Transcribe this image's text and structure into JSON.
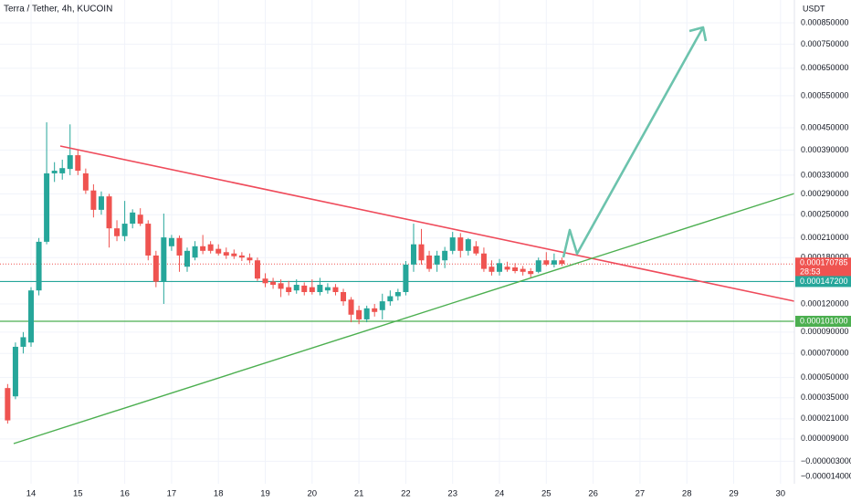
{
  "chart_data": {
    "type": "candlestick",
    "title": "Terra / Tether, 4h, KUCOIN",
    "y_axis_label": "USDT",
    "up_color": "#26a69a",
    "down_color": "#ef5350",
    "grid": true,
    "x": [
      13.5,
      13.667,
      13.833,
      14,
      14.167,
      14.333,
      14.5,
      14.667,
      14.833,
      15,
      15.167,
      15.333,
      15.5,
      15.667,
      15.833,
      16,
      16.167,
      16.333,
      16.5,
      16.667,
      16.833,
      17,
      17.167,
      17.333,
      17.5,
      17.667,
      17.833,
      18,
      18.167,
      18.333,
      18.5,
      18.667,
      18.833,
      19,
      19.167,
      19.333,
      19.5,
      19.667,
      19.833,
      20,
      20.167,
      20.333,
      20.5,
      20.667,
      20.833,
      21,
      21.167,
      21.333,
      21.5,
      21.667,
      21.833,
      22,
      22.167,
      22.333,
      22.5,
      22.667,
      22.833,
      23,
      23.167,
      23.333,
      23.5,
      23.667,
      23.833,
      24,
      24.167,
      24.333,
      24.5,
      24.667,
      24.833,
      25,
      25.167,
      25.333
    ],
    "open": [
      4.2e-05,
      3.6e-05,
      7.6e-05,
      8e-05,
      0.000136,
      0.000204,
      0.000334,
      0.000334,
      0.000344,
      0.000377,
      0.000334,
      0.000297,
      0.000259,
      0.000285,
      0.000226,
      0.000213,
      0.000234,
      0.00025,
      0.000234,
      0.000183,
      0.000147,
      0.000197,
      0.00021,
      0.000167,
      0.00018,
      0.000197,
      0.0002,
      0.000193,
      0.000188,
      0.000186,
      0.000183,
      0.00018,
      0.000176,
      0.000151,
      0.000147,
      0.000145,
      0.00014,
      0.000136,
      0.000142,
      0.00014,
      0.000134,
      0.000136,
      0.00014,
      0.000134,
      0.000125,
      0.000113,
      0.000103,
      0.000115,
      0.000113,
      0.000123,
      0.000129,
      0.000134,
      0.00017,
      0.0002,
      0.000183,
      0.00017,
      0.000176,
      0.00019,
      0.000211,
      0.00019,
      0.000197,
      0.000186,
      0.000167,
      0.00016,
      0.000167,
      0.000166,
      0.000164,
      0.000161,
      0.00016,
      0.000176,
      0.00017,
      0.000176
    ],
    "high": [
      4.5e-05,
      8e-05,
      9e-05,
      0.00014,
      0.00021,
      0.000466,
      0.00036,
      0.000366,
      0.00046,
      0.00039,
      0.000345,
      0.00031,
      0.000295,
      0.00029,
      0.00024,
      0.000276,
      0.00026,
      0.000262,
      0.00024,
      0.00019,
      0.000252,
      0.000215,
      0.000214,
      0.000195,
      0.000205,
      0.000215,
      0.000205,
      0.0002,
      0.000195,
      0.000192,
      0.000188,
      0.000186,
      0.00018,
      0.000158,
      0.000152,
      0.00015,
      0.000148,
      0.00015,
      0.000146,
      0.00015,
      0.000152,
      0.000145,
      0.000144,
      0.000138,
      0.000128,
      0.000118,
      0.000118,
      0.00012,
      0.000132,
      0.000136,
      0.000138,
      0.000175,
      0.000234,
      0.000225,
      0.00019,
      0.00019,
      0.000196,
      0.00022,
      0.000218,
      0.00021,
      0.000205,
      0.000195,
      0.000176,
      0.000178,
      0.000174,
      0.000172,
      0.000168,
      0.000165,
      0.00018,
      0.000188,
      0.000186,
      0.00018
    ],
    "low": [
      1.8e-05,
      3.4e-05,
      7e-05,
      7.6e-05,
      0.00013,
      0.0002,
      0.000315,
      0.00032,
      0.00033,
      0.00033,
      0.00029,
      0.000245,
      0.00025,
      0.000195,
      0.000205,
      0.000205,
      0.000226,
      0.00023,
      0.000176,
      0.00014,
      0.00012,
      0.00019,
      0.00016,
      0.00016,
      0.000176,
      0.000185,
      0.000186,
      0.000183,
      0.000178,
      0.000178,
      0.000175,
      0.000172,
      0.000148,
      0.00014,
      0.000138,
      0.000128,
      0.00013,
      0.000132,
      0.00013,
      0.000131,
      0.00013,
      0.000132,
      0.00013,
      0.000118,
      0.0001,
      9.8e-05,
      0.0001,
      0.000106,
      0.000103,
      0.000118,
      0.000124,
      0.00013,
      0.00016,
      0.00017,
      0.00016,
      0.00016,
      0.000165,
      0.000185,
      0.00018,
      0.000183,
      0.000183,
      0.00016,
      0.000155,
      0.000155,
      0.00016,
      0.000158,
      0.000155,
      0.000152,
      0.000158,
      0.000168,
      0.000166,
      0.000168
    ],
    "close": [
      2e-05,
      7.6e-05,
      8.5e-05,
      0.000136,
      0.000204,
      0.000334,
      0.00034,
      0.000346,
      0.000377,
      0.00034,
      0.000297,
      0.000259,
      0.000285,
      0.000226,
      0.000213,
      0.000234,
      0.000254,
      0.000234,
      0.000183,
      0.000147,
      0.000211,
      0.00021,
      0.000183,
      0.00019,
      0.000197,
      0.00019,
      0.00019,
      0.000186,
      0.000183,
      0.000182,
      0.00018,
      0.000176,
      0.000151,
      0.000145,
      0.000143,
      0.000138,
      0.000134,
      0.000143,
      0.000134,
      0.000134,
      0.000143,
      0.00014,
      0.000134,
      0.000123,
      0.000108,
      0.000103,
      0.000115,
      0.000111,
      0.000123,
      0.000129,
      0.000134,
      0.00017,
      0.0002,
      0.000176,
      0.000164,
      0.000183,
      0.00019,
      0.000211,
      0.00019,
      0.000208,
      0.000186,
      0.000164,
      0.00016,
      0.000172,
      0.000163,
      0.000161,
      0.00016,
      0.000157,
      0.000176,
      0.00017,
      0.000176,
      0.000170785
    ],
    "xlim": [
      13.337,
      30.296
    ],
    "xticks": [
      14,
      15,
      16,
      17,
      18,
      19,
      20,
      21,
      22,
      23,
      24,
      25,
      26,
      27,
      28,
      29,
      30
    ],
    "ylim": [
      -1.37e-05,
      0.0009697
    ],
    "yticks": [
      {
        "value": 0.00085,
        "label": "0.000850000"
      },
      {
        "value": 0.00075,
        "label": "0.000750000"
      },
      {
        "value": 0.00065,
        "label": "0.000650000"
      },
      {
        "value": 0.00055,
        "label": "0.000550000"
      },
      {
        "value": 0.00045,
        "label": "0.000450000"
      },
      {
        "value": 0.00039,
        "label": "0.000390000"
      },
      {
        "value": 0.00033,
        "label": "0.000330000"
      },
      {
        "value": 0.00029,
        "label": "0.000290000"
      },
      {
        "value": 0.00025,
        "label": "0.000250000"
      },
      {
        "value": 0.00021,
        "label": "0.000210000"
      },
      {
        "value": 0.00018,
        "label": "0.000180000"
      },
      {
        "value": 0.00012,
        "label": "0.000120000"
      },
      {
        "value": 9e-05,
        "label": "0.000090000"
      },
      {
        "value": 7e-05,
        "label": "0.000070000"
      },
      {
        "value": 5e-05,
        "label": "0.000050000"
      },
      {
        "value": 3.5e-05,
        "label": "0.000035000"
      },
      {
        "value": 2.1e-05,
        "label": "0.000021000"
      },
      {
        "value": 9e-06,
        "label": "0.000009000"
      },
      {
        "value": -3e-06,
        "label": "−0.000003000"
      },
      {
        "value": -1.4e-05,
        "label": "−0.000014000"
      }
    ],
    "price_lines": [
      {
        "value": 0.0001472,
        "label": "0.000147200",
        "color": "#26a69a"
      },
      {
        "value": 0.000101,
        "label": "0.000101000",
        "color": "#4caf50"
      }
    ],
    "current_price": {
      "value": 0.000170785,
      "label": "0.000170785",
      "countdown": "28:53",
      "color": "#ef5350"
    }
  }
}
